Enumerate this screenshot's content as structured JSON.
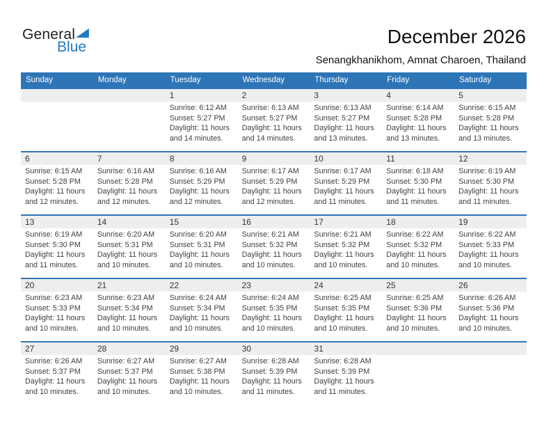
{
  "logo": {
    "general": "General",
    "blue": "Blue"
  },
  "header": {
    "title": "December 2026",
    "subtitle": "Senangkhanikhom, Amnat Charoen, Thailand"
  },
  "colors": {
    "header_bg": "#2d75b6",
    "week_border": "#2d75b6",
    "stripe_bg": "#eeeeee",
    "logo_blue": "#2079c3",
    "header_text": "#ffffff",
    "body_text": "#404040"
  },
  "icons": {
    "logo_triangle": "blue-right-triangle"
  },
  "calendar": {
    "weekdays": [
      "Sunday",
      "Monday",
      "Tuesday",
      "Wednesday",
      "Thursday",
      "Friday",
      "Saturday"
    ],
    "weeks": [
      [
        {
          "day": "",
          "lines": []
        },
        {
          "day": "",
          "lines": []
        },
        {
          "day": "1",
          "lines": [
            "Sunrise: 6:12 AM",
            "Sunset: 5:27 PM",
            "Daylight: 11 hours",
            "and 14 minutes."
          ]
        },
        {
          "day": "2",
          "lines": [
            "Sunrise: 6:13 AM",
            "Sunset: 5:27 PM",
            "Daylight: 11 hours",
            "and 14 minutes."
          ]
        },
        {
          "day": "3",
          "lines": [
            "Sunrise: 6:13 AM",
            "Sunset: 5:27 PM",
            "Daylight: 11 hours",
            "and 13 minutes."
          ]
        },
        {
          "day": "4",
          "lines": [
            "Sunrise: 6:14 AM",
            "Sunset: 5:28 PM",
            "Daylight: 11 hours",
            "and 13 minutes."
          ]
        },
        {
          "day": "5",
          "lines": [
            "Sunrise: 6:15 AM",
            "Sunset: 5:28 PM",
            "Daylight: 11 hours",
            "and 13 minutes."
          ]
        }
      ],
      [
        {
          "day": "6",
          "lines": [
            "Sunrise: 6:15 AM",
            "Sunset: 5:28 PM",
            "Daylight: 11 hours",
            "and 12 minutes."
          ]
        },
        {
          "day": "7",
          "lines": [
            "Sunrise: 6:16 AM",
            "Sunset: 5:28 PM",
            "Daylight: 11 hours",
            "and 12 minutes."
          ]
        },
        {
          "day": "8",
          "lines": [
            "Sunrise: 6:16 AM",
            "Sunset: 5:29 PM",
            "Daylight: 11 hours",
            "and 12 minutes."
          ]
        },
        {
          "day": "9",
          "lines": [
            "Sunrise: 6:17 AM",
            "Sunset: 5:29 PM",
            "Daylight: 11 hours",
            "and 12 minutes."
          ]
        },
        {
          "day": "10",
          "lines": [
            "Sunrise: 6:17 AM",
            "Sunset: 5:29 PM",
            "Daylight: 11 hours",
            "and 11 minutes."
          ]
        },
        {
          "day": "11",
          "lines": [
            "Sunrise: 6:18 AM",
            "Sunset: 5:30 PM",
            "Daylight: 11 hours",
            "and 11 minutes."
          ]
        },
        {
          "day": "12",
          "lines": [
            "Sunrise: 6:19 AM",
            "Sunset: 5:30 PM",
            "Daylight: 11 hours",
            "and 11 minutes."
          ]
        }
      ],
      [
        {
          "day": "13",
          "lines": [
            "Sunrise: 6:19 AM",
            "Sunset: 5:30 PM",
            "Daylight: 11 hours",
            "and 11 minutes."
          ]
        },
        {
          "day": "14",
          "lines": [
            "Sunrise: 6:20 AM",
            "Sunset: 5:31 PM",
            "Daylight: 11 hours",
            "and 10 minutes."
          ]
        },
        {
          "day": "15",
          "lines": [
            "Sunrise: 6:20 AM",
            "Sunset: 5:31 PM",
            "Daylight: 11 hours",
            "and 10 minutes."
          ]
        },
        {
          "day": "16",
          "lines": [
            "Sunrise: 6:21 AM",
            "Sunset: 5:32 PM",
            "Daylight: 11 hours",
            "and 10 minutes."
          ]
        },
        {
          "day": "17",
          "lines": [
            "Sunrise: 6:21 AM",
            "Sunset: 5:32 PM",
            "Daylight: 11 hours",
            "and 10 minutes."
          ]
        },
        {
          "day": "18",
          "lines": [
            "Sunrise: 6:22 AM",
            "Sunset: 5:32 PM",
            "Daylight: 11 hours",
            "and 10 minutes."
          ]
        },
        {
          "day": "19",
          "lines": [
            "Sunrise: 6:22 AM",
            "Sunset: 5:33 PM",
            "Daylight: 11 hours",
            "and 10 minutes."
          ]
        }
      ],
      [
        {
          "day": "20",
          "lines": [
            "Sunrise: 6:23 AM",
            "Sunset: 5:33 PM",
            "Daylight: 11 hours",
            "and 10 minutes."
          ]
        },
        {
          "day": "21",
          "lines": [
            "Sunrise: 6:23 AM",
            "Sunset: 5:34 PM",
            "Daylight: 11 hours",
            "and 10 minutes."
          ]
        },
        {
          "day": "22",
          "lines": [
            "Sunrise: 6:24 AM",
            "Sunset: 5:34 PM",
            "Daylight: 11 hours",
            "and 10 minutes."
          ]
        },
        {
          "day": "23",
          "lines": [
            "Sunrise: 6:24 AM",
            "Sunset: 5:35 PM",
            "Daylight: 11 hours",
            "and 10 minutes."
          ]
        },
        {
          "day": "24",
          "lines": [
            "Sunrise: 6:25 AM",
            "Sunset: 5:35 PM",
            "Daylight: 11 hours",
            "and 10 minutes."
          ]
        },
        {
          "day": "25",
          "lines": [
            "Sunrise: 6:25 AM",
            "Sunset: 5:36 PM",
            "Daylight: 11 hours",
            "and 10 minutes."
          ]
        },
        {
          "day": "26",
          "lines": [
            "Sunrise: 6:26 AM",
            "Sunset: 5:36 PM",
            "Daylight: 11 hours",
            "and 10 minutes."
          ]
        }
      ],
      [
        {
          "day": "27",
          "lines": [
            "Sunrise: 6:26 AM",
            "Sunset: 5:37 PM",
            "Daylight: 11 hours",
            "and 10 minutes."
          ]
        },
        {
          "day": "28",
          "lines": [
            "Sunrise: 6:27 AM",
            "Sunset: 5:37 PM",
            "Daylight: 11 hours",
            "and 10 minutes."
          ]
        },
        {
          "day": "29",
          "lines": [
            "Sunrise: 6:27 AM",
            "Sunset: 5:38 PM",
            "Daylight: 11 hours",
            "and 10 minutes."
          ]
        },
        {
          "day": "30",
          "lines": [
            "Sunrise: 6:28 AM",
            "Sunset: 5:39 PM",
            "Daylight: 11 hours",
            "and 11 minutes."
          ]
        },
        {
          "day": "31",
          "lines": [
            "Sunrise: 6:28 AM",
            "Sunset: 5:39 PM",
            "Daylight: 11 hours",
            "and 11 minutes."
          ]
        },
        {
          "day": "",
          "lines": []
        },
        {
          "day": "",
          "lines": []
        }
      ]
    ]
  }
}
